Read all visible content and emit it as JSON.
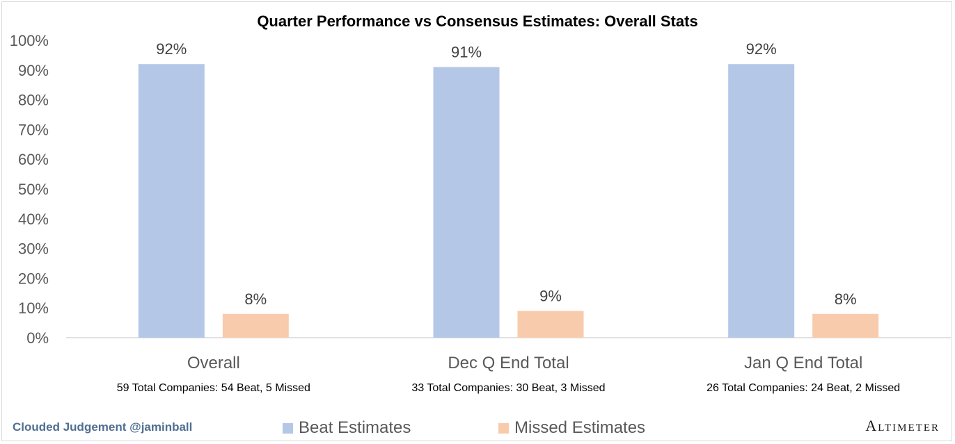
{
  "chart_data": {
    "type": "bar",
    "title": "Quarter Performance vs Consensus Estimates: Overall Stats",
    "categories": [
      "Overall",
      "Dec Q End Total",
      "Jan Q End Total"
    ],
    "subtitles": [
      "59 Total Companies: 54 Beat, 5 Missed",
      "33 Total Companies: 30 Beat, 3 Missed",
      "26 Total Companies: 24 Beat, 2 Missed"
    ],
    "series": [
      {
        "name": "Beat Estimates",
        "values": [
          0.92,
          0.91,
          0.92
        ],
        "labels": [
          "92%",
          "91%",
          "92%"
        ],
        "color": "#b4c7e7"
      },
      {
        "name": "Missed Estimates",
        "values": [
          0.08,
          0.09,
          0.08
        ],
        "labels": [
          "8%",
          "9%",
          "8%"
        ],
        "color": "#f8cbad"
      }
    ],
    "ylim": [
      0,
      1
    ],
    "yticks": [
      "0%",
      "10%",
      "20%",
      "30%",
      "40%",
      "50%",
      "60%",
      "70%",
      "80%",
      "90%",
      "100%"
    ],
    "grid": false,
    "legend_position": "bottom"
  },
  "footer": {
    "watermark": "Clouded Judgement @jaminball",
    "brand": "Altimeter"
  }
}
